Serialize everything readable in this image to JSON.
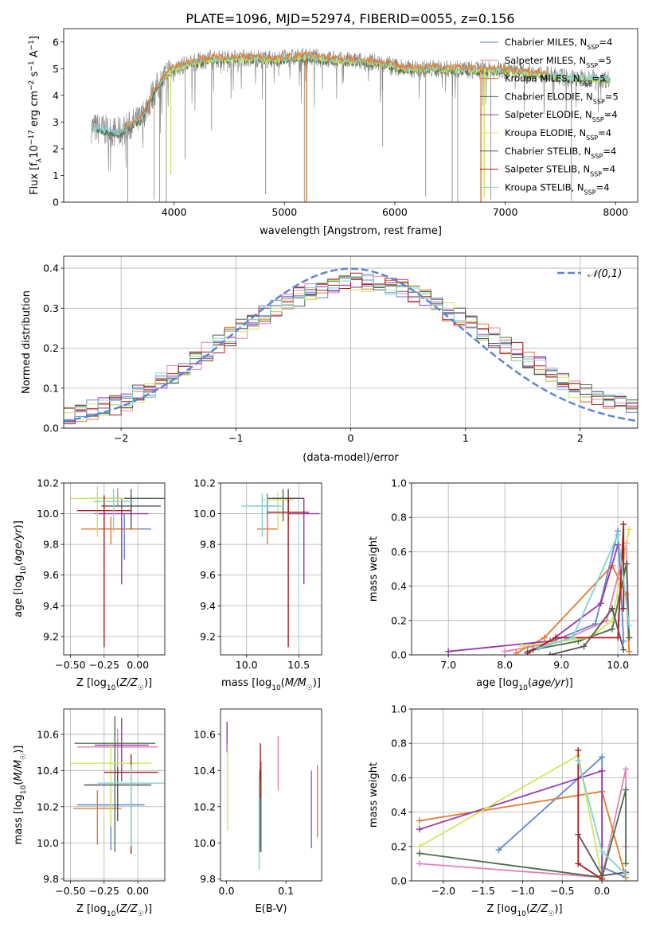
{
  "figure_title": "PLATE=1096, MJD=52974, FIBERID=0055, z=0.156",
  "colors": {
    "chabrier_miles": "#5b86d6",
    "salpeter_miles": "#e67fb8",
    "kroupa_miles": "#e57a2e",
    "chabrier_elodie": "#4c6e4c",
    "salpeter_elodie": "#9b35b0",
    "kroupa_elodie": "#cde85b",
    "chabrier_stelib": "#555555",
    "salpeter_stelib": "#b01a1a",
    "kroupa_stelib": "#7fd3d3",
    "data": "#808080",
    "gaussian": "#5b86d6"
  },
  "chart_data": [
    {
      "id": "spectrum",
      "type": "line",
      "title": "PLATE=1096, MJD=52974, FIBERID=0055, z=0.156",
      "xlabel": "wavelength [Angstrom, rest frame]",
      "ylabel": "Flux [f_λ 10^-17 erg cm^-2 s^-1 A^-1]",
      "xlim": [
        3000,
        8200
      ],
      "ylim": [
        0,
        6.5
      ],
      "xticks": [
        4000,
        5000,
        6000,
        7000,
        8000
      ],
      "yticks": [
        0,
        1,
        2,
        3,
        4,
        5,
        6
      ],
      "legend": {
        "placement": "upper-right",
        "entries": [
          "Chabrier MILES, N_SSP=4",
          "Salpeter MILES, N_SSP=5",
          "Kroupa MILES, N_SSP=5",
          "Chabrier ELODIE, N_SSP=5",
          "Salpeter ELODIE, N_SSP=4",
          "Kroupa ELODIE, N_SSP=4",
          "Chabrier STELIB, N_SSP=4",
          "Salpeter STELIB, N_SSP=4",
          "Kroupa STELIB, N_SSP=4"
        ]
      },
      "continuum": {
        "x": [
          3250,
          3500,
          3700,
          3800,
          3950,
          4100,
          4300,
          4600,
          4900,
          5200,
          5500,
          5800,
          6100,
          6400,
          6700,
          7000,
          7300,
          7600,
          7950
        ],
        "y": [
          2.8,
          2.6,
          3.1,
          4.0,
          4.9,
          5.15,
          5.35,
          5.4,
          5.35,
          5.45,
          5.3,
          5.25,
          5.0,
          5.0,
          4.95,
          4.95,
          4.8,
          4.65,
          4.6
        ]
      },
      "series_ranges": {
        "chabrier_elodie": [
          3300,
          7950
        ],
        "kroupa_elodie": [
          3900,
          7950
        ],
        "kroupa_stelib": [
          3250,
          7950
        ],
        "kroupa_miles": [
          3550,
          7400
        ]
      },
      "absorption_lines": [
        {
          "x": 3580,
          "y": 0
        },
        {
          "x": 3820,
          "y": 0.1
        },
        {
          "x": 3870,
          "y": 0
        },
        {
          "x": 3930,
          "y": 0
        },
        {
          "x": 3970,
          "y": 1.05
        },
        {
          "x": 4100,
          "y": 1.6
        },
        {
          "x": 4340,
          "y": 2.7
        },
        {
          "x": 4830,
          "y": 0.3
        },
        {
          "x": 5180,
          "y": 0
        },
        {
          "x": 5200,
          "y": 0
        },
        {
          "x": 5890,
          "y": 2.1
        },
        {
          "x": 6280,
          "y": 0.2
        },
        {
          "x": 6520,
          "y": 0
        },
        {
          "x": 6570,
          "y": 0
        },
        {
          "x": 6870,
          "y": 0.1
        },
        {
          "x": 7600,
          "y": 0.05
        }
      ],
      "model_drops": [
        {
          "series": "kroupa_miles",
          "x": 3780,
          "y": 3.3
        },
        {
          "series": "kroupa_miles",
          "x": 5200,
          "y": 0
        },
        {
          "series": "kroupa_miles",
          "x": 6780,
          "y": 0
        },
        {
          "series": "kroupa_elodie",
          "x": 3970,
          "y": 1.1
        },
        {
          "series": "kroupa_elodie",
          "x": 6810,
          "y": 0.2
        }
      ]
    },
    {
      "id": "residuals",
      "type": "line",
      "xlabel": "(data-model)/error",
      "ylabel": "Normed distribution",
      "xlim": [
        -2.5,
        2.5
      ],
      "ylim": [
        0,
        0.43
      ],
      "xticks": [
        -2,
        -1,
        0,
        1,
        2
      ],
      "yticks": [
        0.0,
        0.1,
        0.2,
        0.3,
        0.4
      ],
      "grid": true,
      "legend": {
        "placement": "upper-right",
        "entries": [
          "𝒩(0,1)"
        ]
      },
      "gaussian": {
        "mean": 0,
        "sigma": 1
      },
      "histogram": {
        "bin_width": 0.1,
        "x_start": -2.5,
        "profile_x": [
          -2.5,
          -2.0,
          -1.5,
          -1.0,
          -0.5,
          0.0,
          0.5,
          1.0,
          1.5,
          2.0,
          2.5
        ],
        "profile_y": [
          0.032,
          0.06,
          0.14,
          0.24,
          0.325,
          0.37,
          0.345,
          0.27,
          0.185,
          0.09,
          0.05
        ]
      }
    },
    {
      "id": "age_vs_Z",
      "type": "scatter",
      "xlabel": "Z [log10(Z/Z☉)]",
      "ylabel": "age  [log10(age/yr)]",
      "xlim": [
        -0.55,
        0.2
      ],
      "ylim": [
        9.08,
        10.2
      ],
      "xticks": [
        -0.5,
        -0.25,
        0.0
      ],
      "yticks": [
        9.2,
        9.4,
        9.6,
        9.8,
        10.0,
        10.2
      ],
      "grid": true,
      "points": [
        {
          "series": "chabrier_miles",
          "x": -0.1,
          "y": 9.9,
          "xerr": 0.2,
          "yerr": [
            0.1,
            0.2
          ]
        },
        {
          "series": "salpeter_miles",
          "x": -0.15,
          "y": 10.1,
          "xerr": 0.25,
          "yerr": [
            0.07,
            0.05
          ]
        },
        {
          "series": "kroupa_miles",
          "x": -0.2,
          "y": 9.9,
          "xerr": 0.22,
          "yerr": [
            0.08,
            0.1
          ]
        },
        {
          "series": "chabrier_elodie",
          "x": -0.05,
          "y": 10.1,
          "xerr": 0.3,
          "yerr": [
            0.06,
            0.15
          ]
        },
        {
          "series": "salpeter_elodie",
          "x": -0.12,
          "y": 10.0,
          "xerr": 0.2,
          "yerr": [
            0.1,
            0.46
          ]
        },
        {
          "series": "kroupa_elodie",
          "x": -0.3,
          "y": 10.1,
          "xerr": 0.2,
          "yerr": [
            0.08,
            0.25
          ]
        },
        {
          "series": "chabrier_stelib",
          "x": -0.05,
          "y": 10.05,
          "xerr": 0.22,
          "yerr": [
            0.07,
            0.15
          ]
        },
        {
          "series": "salpeter_stelib",
          "x": -0.25,
          "y": 10.02,
          "xerr": 0.2,
          "yerr": [
            0.1,
            0.89
          ]
        },
        {
          "series": "kroupa_stelib",
          "x": -0.18,
          "y": 10.08,
          "xerr": 0.15,
          "yerr": [
            0.08,
            0.2
          ]
        }
      ]
    },
    {
      "id": "age_vs_mass",
      "type": "scatter",
      "xlabel": "mass [log10(M/M☉)]",
      "ylabel": "",
      "xlim": [
        9.75,
        10.72
      ],
      "ylim": [
        9.08,
        10.2
      ],
      "xticks": [
        10.0,
        10.5
      ],
      "yticks": [
        9.2,
        9.4,
        9.6,
        9.8,
        10.0,
        10.2
      ],
      "grid": true,
      "points": [
        {
          "series": "chabrier_miles",
          "x": 10.2,
          "y": 10.05,
          "xerr": 0.12,
          "yerr": [
            0.08,
            0.1
          ]
        },
        {
          "series": "salpeter_miles",
          "x": 10.4,
          "y": 10.1,
          "xerr": 0.15,
          "yerr": [
            0.06,
            0.05
          ]
        },
        {
          "series": "kroupa_miles",
          "x": 10.2,
          "y": 9.9,
          "xerr": 0.1,
          "yerr": [
            0.08,
            0.1
          ]
        },
        {
          "series": "chabrier_elodie",
          "x": 10.35,
          "y": 10.1,
          "xerr": 0.15,
          "yerr": [
            0.06,
            0.15
          ]
        },
        {
          "series": "salpeter_elodie",
          "x": 10.55,
          "y": 10.0,
          "xerr": 0.15,
          "yerr": [
            0.1,
            0.46
          ]
        },
        {
          "series": "kroupa_elodie",
          "x": 10.3,
          "y": 10.09,
          "xerr": 0.15,
          "yerr": [
            0.05,
            0.2
          ]
        },
        {
          "series": "chabrier_stelib",
          "x": 10.4,
          "y": 10.1,
          "xerr": 0.15,
          "yerr": [
            0.06,
            0.15
          ]
        },
        {
          "series": "salpeter_stelib",
          "x": 10.4,
          "y": 10.01,
          "xerr": 0.2,
          "yerr": [
            0.1,
            0.88
          ]
        },
        {
          "series": "kroupa_stelib",
          "x": 10.15,
          "y": 10.05,
          "xerr": 0.2,
          "yerr": [
            0.08,
            0.2
          ]
        }
      ]
    },
    {
      "id": "weight_vs_age",
      "type": "line",
      "xlabel": "age  [log10(age/yr)]",
      "ylabel": "mass weight",
      "xlim": [
        6.35,
        10.35
      ],
      "ylim": [
        0,
        1.0
      ],
      "xticks": [
        7,
        8,
        9,
        10
      ],
      "yticks": [
        0.0,
        0.2,
        0.4,
        0.6,
        0.8,
        1.0
      ],
      "grid": true,
      "series": [
        {
          "key": "chabrier_miles",
          "x": [
            8.4,
            9.6,
            10.0,
            10.1
          ],
          "y": [
            0.02,
            0.18,
            0.72,
            0.08
          ]
        },
        {
          "key": "salpeter_miles",
          "x": [
            8.0,
            9.0,
            9.8,
            10.15,
            10.2
          ],
          "y": [
            0.02,
            0.08,
            0.2,
            0.65,
            0.1
          ]
        },
        {
          "key": "kroupa_miles",
          "x": [
            8.2,
            8.7,
            9.9,
            10.15,
            10.2
          ],
          "y": [
            0.01,
            0.1,
            0.52,
            0.35,
            0.02
          ]
        },
        {
          "key": "chabrier_elodie",
          "x": [
            8.5,
            9.3,
            9.9,
            10.15,
            10.2
          ],
          "y": [
            0.03,
            0.08,
            0.15,
            0.53,
            0.1
          ]
        },
        {
          "key": "salpeter_elodie",
          "x": [
            7.0,
            8.8,
            9.7,
            10.0
          ],
          "y": [
            0.02,
            0.08,
            0.3,
            0.64
          ]
        },
        {
          "key": "kroupa_elodie",
          "x": [
            8.3,
            9.5,
            9.9,
            10.2
          ],
          "y": [
            0.05,
            0.1,
            0.2,
            0.73
          ]
        },
        {
          "key": "chabrier_stelib",
          "x": [
            8.8,
            9.4,
            9.9,
            10.1
          ],
          "y": [
            0.0,
            0.05,
            0.27,
            0.03
          ]
        },
        {
          "key": "salpeter_stelib",
          "x": [
            8.4,
            8.9,
            10.0,
            10.1,
            10.1
          ],
          "y": [
            0.01,
            0.1,
            0.1,
            0.76,
            0.27
          ]
        },
        {
          "key": "kroupa_stelib",
          "x": [
            8.6,
            9.2,
            10.0,
            10.2
          ],
          "y": [
            0.04,
            0.1,
            0.7,
            0.17
          ]
        }
      ]
    },
    {
      "id": "mass_vs_Z",
      "type": "scatter",
      "xlabel": "Z [log10(Z/Z☉)]",
      "ylabel": "mass [log10(M/M☉)]",
      "xlim": [
        -0.55,
        0.2
      ],
      "ylim": [
        9.79,
        10.74
      ],
      "xticks": [
        -0.5,
        -0.25,
        0.0
      ],
      "yticks": [
        9.8,
        10.0,
        10.2,
        10.4,
        10.6
      ],
      "grid": true,
      "points": [
        {
          "series": "chabrier_miles",
          "x": -0.2,
          "y": 10.21,
          "xerr": 0.25,
          "yerr": [
            0.1,
            0.25
          ]
        },
        {
          "series": "salpeter_miles",
          "x": -0.15,
          "y": 10.53,
          "xerr": 0.3,
          "yerr": [
            0.1,
            0.3
          ]
        },
        {
          "series": "kroupa_miles",
          "x": -0.3,
          "y": 10.19,
          "xerr": 0.18,
          "yerr": [
            0.1,
            0.2
          ]
        },
        {
          "series": "chabrier_elodie",
          "x": -0.17,
          "y": 10.55,
          "xerr": 0.3,
          "yerr": [
            0.15,
            0.6
          ]
        },
        {
          "series": "salpeter_elodie",
          "x": -0.12,
          "y": 10.54,
          "xerr": 0.2,
          "yerr": [
            0.15,
            0.2
          ]
        },
        {
          "series": "kroupa_elodie",
          "x": -0.2,
          "y": 10.44,
          "xerr": 0.3,
          "yerr": [
            0.1,
            0.35
          ]
        },
        {
          "series": "chabrier_stelib",
          "x": -0.15,
          "y": 10.32,
          "xerr": 0.25,
          "yerr": [
            0.1,
            0.2
          ]
        },
        {
          "series": "salpeter_stelib",
          "x": -0.05,
          "y": 10.39,
          "xerr": 0.2,
          "yerr": [
            0.1,
            0.45
          ]
        },
        {
          "series": "kroupa_stelib",
          "x": -0.05,
          "y": 10.33,
          "xerr": 0.25,
          "yerr": [
            0.1,
            0.35
          ]
        }
      ]
    },
    {
      "id": "mass_vs_ebv",
      "type": "scatter",
      "xlabel": "E(B-V)",
      "ylabel": "",
      "xlim": [
        -0.01,
        0.16
      ],
      "ylim": [
        9.79,
        10.74
      ],
      "xticks": [
        0.0,
        0.1
      ],
      "yticks": [
        9.8,
        10.0,
        10.2,
        10.4,
        10.6
      ],
      "grid": false,
      "points": [
        {
          "series": "chabrier_miles",
          "x": 0.143,
          "y": 10.2,
          "xerr": 0,
          "yerr": [
            0.2,
            0.23
          ]
        },
        {
          "series": "salpeter_miles",
          "x": 0.087,
          "y": 10.46,
          "xerr": 0,
          "yerr": [
            0.13,
            0.17
          ]
        },
        {
          "series": "kroupa_miles",
          "x": 0.153,
          "y": 10.2,
          "xerr": 0,
          "yerr": [
            0.23,
            0.17
          ]
        },
        {
          "series": "chabrier_elodie",
          "x": 0.058,
          "y": 10.2,
          "xerr": 0,
          "yerr": [
            0.25,
            0.25
          ]
        },
        {
          "series": "salpeter_elodie",
          "x": 0.001,
          "y": 10.6,
          "xerr": 0,
          "yerr": [
            0.07,
            0.1
          ]
        },
        {
          "series": "kroupa_elodie",
          "x": 0.002,
          "y": 10.3,
          "xerr": 0,
          "yerr": [
            0.25,
            0.23
          ]
        },
        {
          "series": "chabrier_stelib",
          "x": 0.056,
          "y": 10.2,
          "xerr": 0,
          "yerr": [
            0.2,
            0.25
          ]
        },
        {
          "series": "salpeter_stelib",
          "x": 0.057,
          "y": 10.4,
          "xerr": 0,
          "yerr": [
            0.15,
            0.15
          ]
        },
        {
          "series": "kroupa_stelib",
          "x": 0.055,
          "y": 10.15,
          "xerr": 0,
          "yerr": [
            0.2,
            0.3
          ]
        }
      ]
    },
    {
      "id": "weight_vs_Z",
      "type": "line",
      "xlabel": "Z [log10(Z/Z☉)]",
      "ylabel": "mass weight",
      "xlim": [
        -2.4,
        0.45
      ],
      "ylim": [
        0,
        1.0
      ],
      "xticks": [
        -2.0,
        -1.5,
        -1.0,
        -0.5,
        0.0
      ],
      "yticks": [
        0.0,
        0.2,
        0.4,
        0.6,
        0.8,
        1.0
      ],
      "grid": true,
      "series": [
        {
          "key": "chabrier_miles",
          "x": [
            -1.3,
            0.0,
            0.0,
            0.3
          ],
          "y": [
            0.18,
            0.72,
            0.08,
            0.02
          ]
        },
        {
          "key": "salpeter_miles",
          "x": [
            -2.3,
            0.0,
            0.3,
            0.3
          ],
          "y": [
            0.1,
            0.02,
            0.65,
            0.2
          ]
        },
        {
          "key": "kroupa_miles",
          "x": [
            -2.3,
            0.0,
            0.3
          ],
          "y": [
            0.35,
            0.52,
            0.02
          ]
        },
        {
          "key": "chabrier_elodie",
          "x": [
            -2.3,
            0.0,
            0.3,
            0.3
          ],
          "y": [
            0.16,
            0.02,
            0.53,
            0.1
          ]
        },
        {
          "key": "salpeter_elodie",
          "x": [
            -2.3,
            0.0,
            0.0
          ],
          "y": [
            0.3,
            0.64,
            0.02
          ]
        },
        {
          "key": "kroupa_elodie",
          "x": [
            -2.3,
            -0.3,
            0.0
          ],
          "y": [
            0.2,
            0.73,
            0.02
          ]
        },
        {
          "key": "chabrier_stelib",
          "x": [
            -0.3,
            0.0,
            0.3
          ],
          "y": [
            0.27,
            0.03,
            0.05
          ]
        },
        {
          "key": "salpeter_stelib",
          "x": [
            -0.3,
            -0.3,
            0.0
          ],
          "y": [
            0.76,
            0.1,
            0.01
          ]
        },
        {
          "key": "kroupa_stelib",
          "x": [
            -0.3,
            0.0,
            0.3
          ],
          "y": [
            0.7,
            0.17,
            0.04
          ]
        }
      ]
    }
  ]
}
